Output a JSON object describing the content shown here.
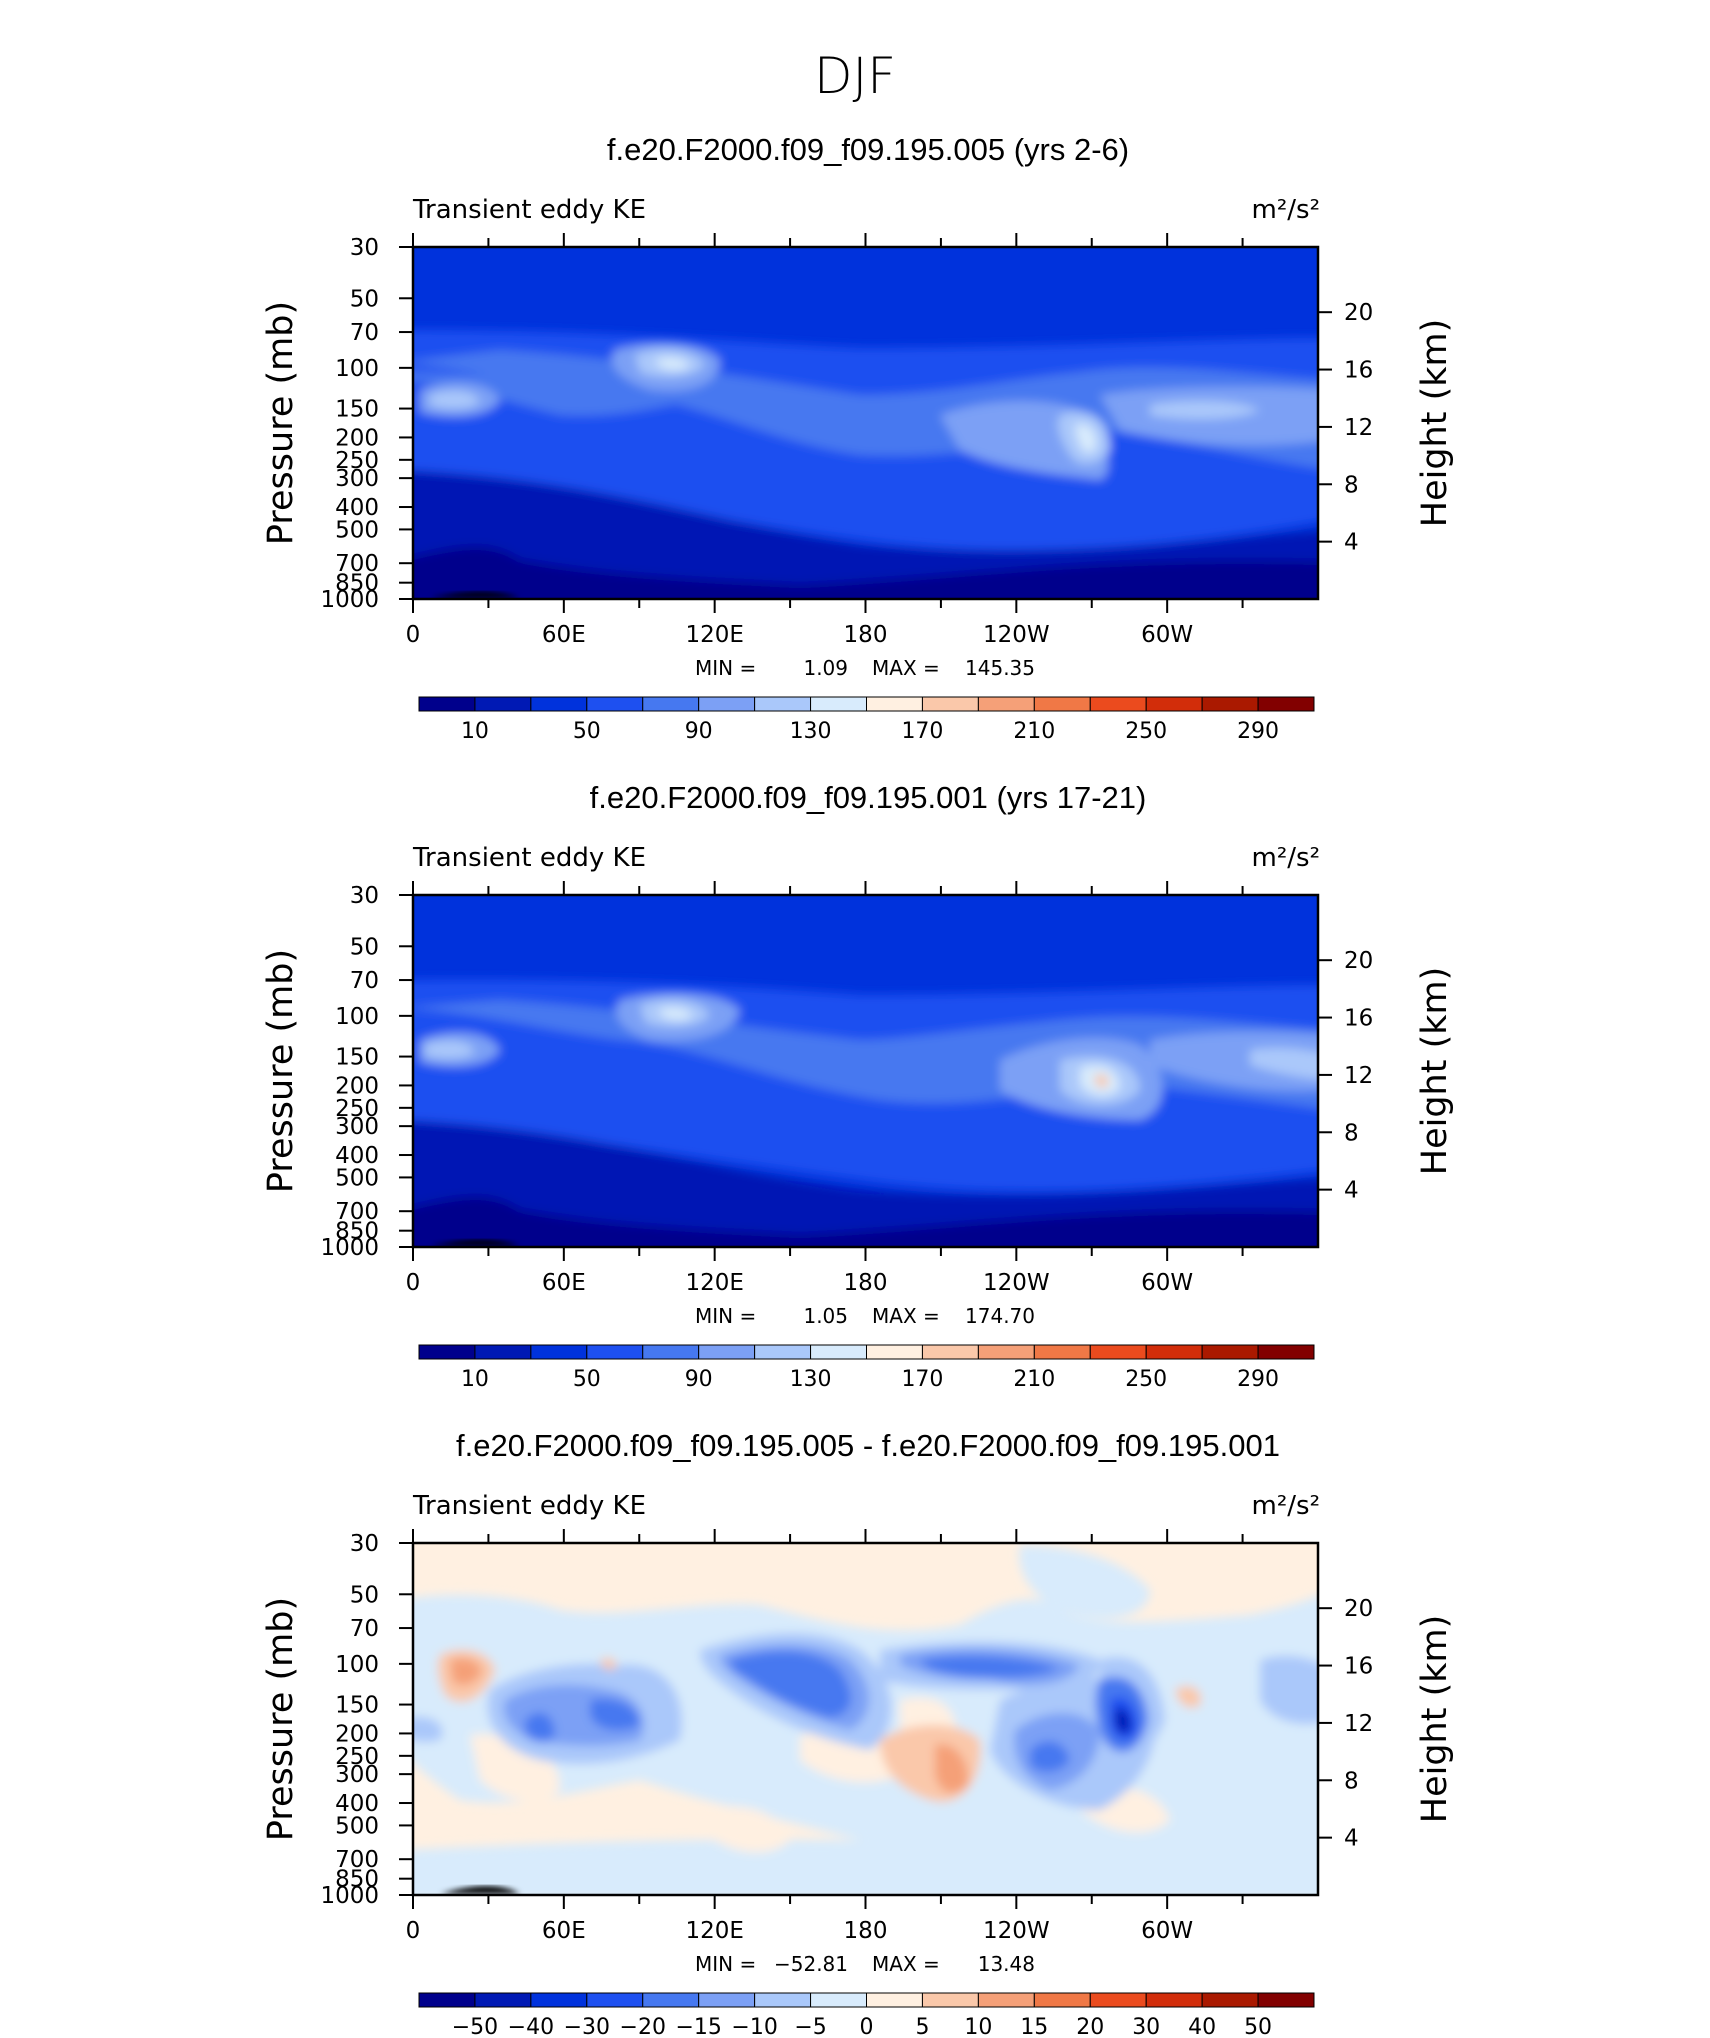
{
  "figure_title": "DJF",
  "chart_data": [
    {
      "type": "heatmap",
      "title": "f.e20.F2000.f09_f09.195.005 (yrs 2-6)",
      "left_label": "Transient eddy KE",
      "units": "m²/s²",
      "ylabel": "Pressure (mb)",
      "ylabel_right": "Height (km)",
      "x_ticks": [
        "0",
        "60E",
        "120E",
        "180",
        "120W",
        "60W"
      ],
      "y_ticks": [
        "30",
        "50",
        "70",
        "100",
        "150",
        "200",
        "250",
        "300",
        "400",
        "500",
        "700",
        "850",
        "1000"
      ],
      "y_ticks_right": [
        "20",
        "16",
        "12",
        "8",
        "4"
      ],
      "stats": {
        "min_label": "MIN =",
        "min": "1.09",
        "max_label": "MAX =",
        "max": "145.35"
      },
      "colorbar_labels": [
        "10",
        "50",
        "90",
        "130",
        "170",
        "210",
        "250",
        "290"
      ],
      "colorbar_colors": [
        "#00008c",
        "#0019b4",
        "#0032dc",
        "#1e50f0",
        "#4678f0",
        "#7ca0f5",
        "#aac8fa",
        "#d8ebfc",
        "#fff0e1",
        "#fac8aa",
        "#f5a078",
        "#f07846",
        "#eb4b1e",
        "#d22d0a",
        "#aa1900",
        "#820000"
      ]
    },
    {
      "type": "heatmap",
      "title": "f.e20.F2000.f09_f09.195.001 (yrs 17-21)",
      "left_label": "Transient eddy KE",
      "units": "m²/s²",
      "ylabel": "Pressure (mb)",
      "ylabel_right": "Height (km)",
      "x_ticks": [
        "0",
        "60E",
        "120E",
        "180",
        "120W",
        "60W"
      ],
      "y_ticks": [
        "30",
        "50",
        "70",
        "100",
        "150",
        "200",
        "250",
        "300",
        "400",
        "500",
        "700",
        "850",
        "1000"
      ],
      "y_ticks_right": [
        "20",
        "16",
        "12",
        "8",
        "4"
      ],
      "stats": {
        "min_label": "MIN =",
        "min": "1.05",
        "max_label": "MAX =",
        "max": "174.70"
      },
      "colorbar_labels": [
        "10",
        "50",
        "90",
        "130",
        "170",
        "210",
        "250",
        "290"
      ],
      "colorbar_colors": [
        "#00008c",
        "#0019b4",
        "#0032dc",
        "#1e50f0",
        "#4678f0",
        "#7ca0f5",
        "#aac8fa",
        "#d8ebfc",
        "#fff0e1",
        "#fac8aa",
        "#f5a078",
        "#f07846",
        "#eb4b1e",
        "#d22d0a",
        "#aa1900",
        "#820000"
      ]
    },
    {
      "type": "heatmap",
      "title": "f.e20.F2000.f09_f09.195.005 - f.e20.F2000.f09_f09.195.001",
      "left_label": "Transient eddy KE",
      "units": "m²/s²",
      "ylabel": "Pressure (mb)",
      "ylabel_right": "Height (km)",
      "x_ticks": [
        "0",
        "60E",
        "120E",
        "180",
        "120W",
        "60W"
      ],
      "y_ticks": [
        "30",
        "50",
        "70",
        "100",
        "150",
        "200",
        "250",
        "300",
        "400",
        "500",
        "700",
        "850",
        "1000"
      ],
      "y_ticks_right": [
        "20",
        "16",
        "12",
        "8",
        "4"
      ],
      "stats": {
        "min_label": "MIN =",
        "min": "−52.81",
        "max_label": "MAX =",
        "max": "13.48"
      },
      "colorbar_labels": [
        "−50",
        "−40",
        "−30",
        "−20",
        "−15",
        "−10",
        "−5",
        "0",
        "5",
        "10",
        "15",
        "20",
        "30",
        "40",
        "50"
      ],
      "colorbar_colors": [
        "#00008c",
        "#0019b4",
        "#0032dc",
        "#1e50f0",
        "#4678f0",
        "#7ca0f5",
        "#aac8fa",
        "#d8ebfc",
        "#fff0e1",
        "#fac8aa",
        "#f5a078",
        "#f07846",
        "#eb4b1e",
        "#d22d0a",
        "#aa1900",
        "#820000"
      ]
    }
  ]
}
